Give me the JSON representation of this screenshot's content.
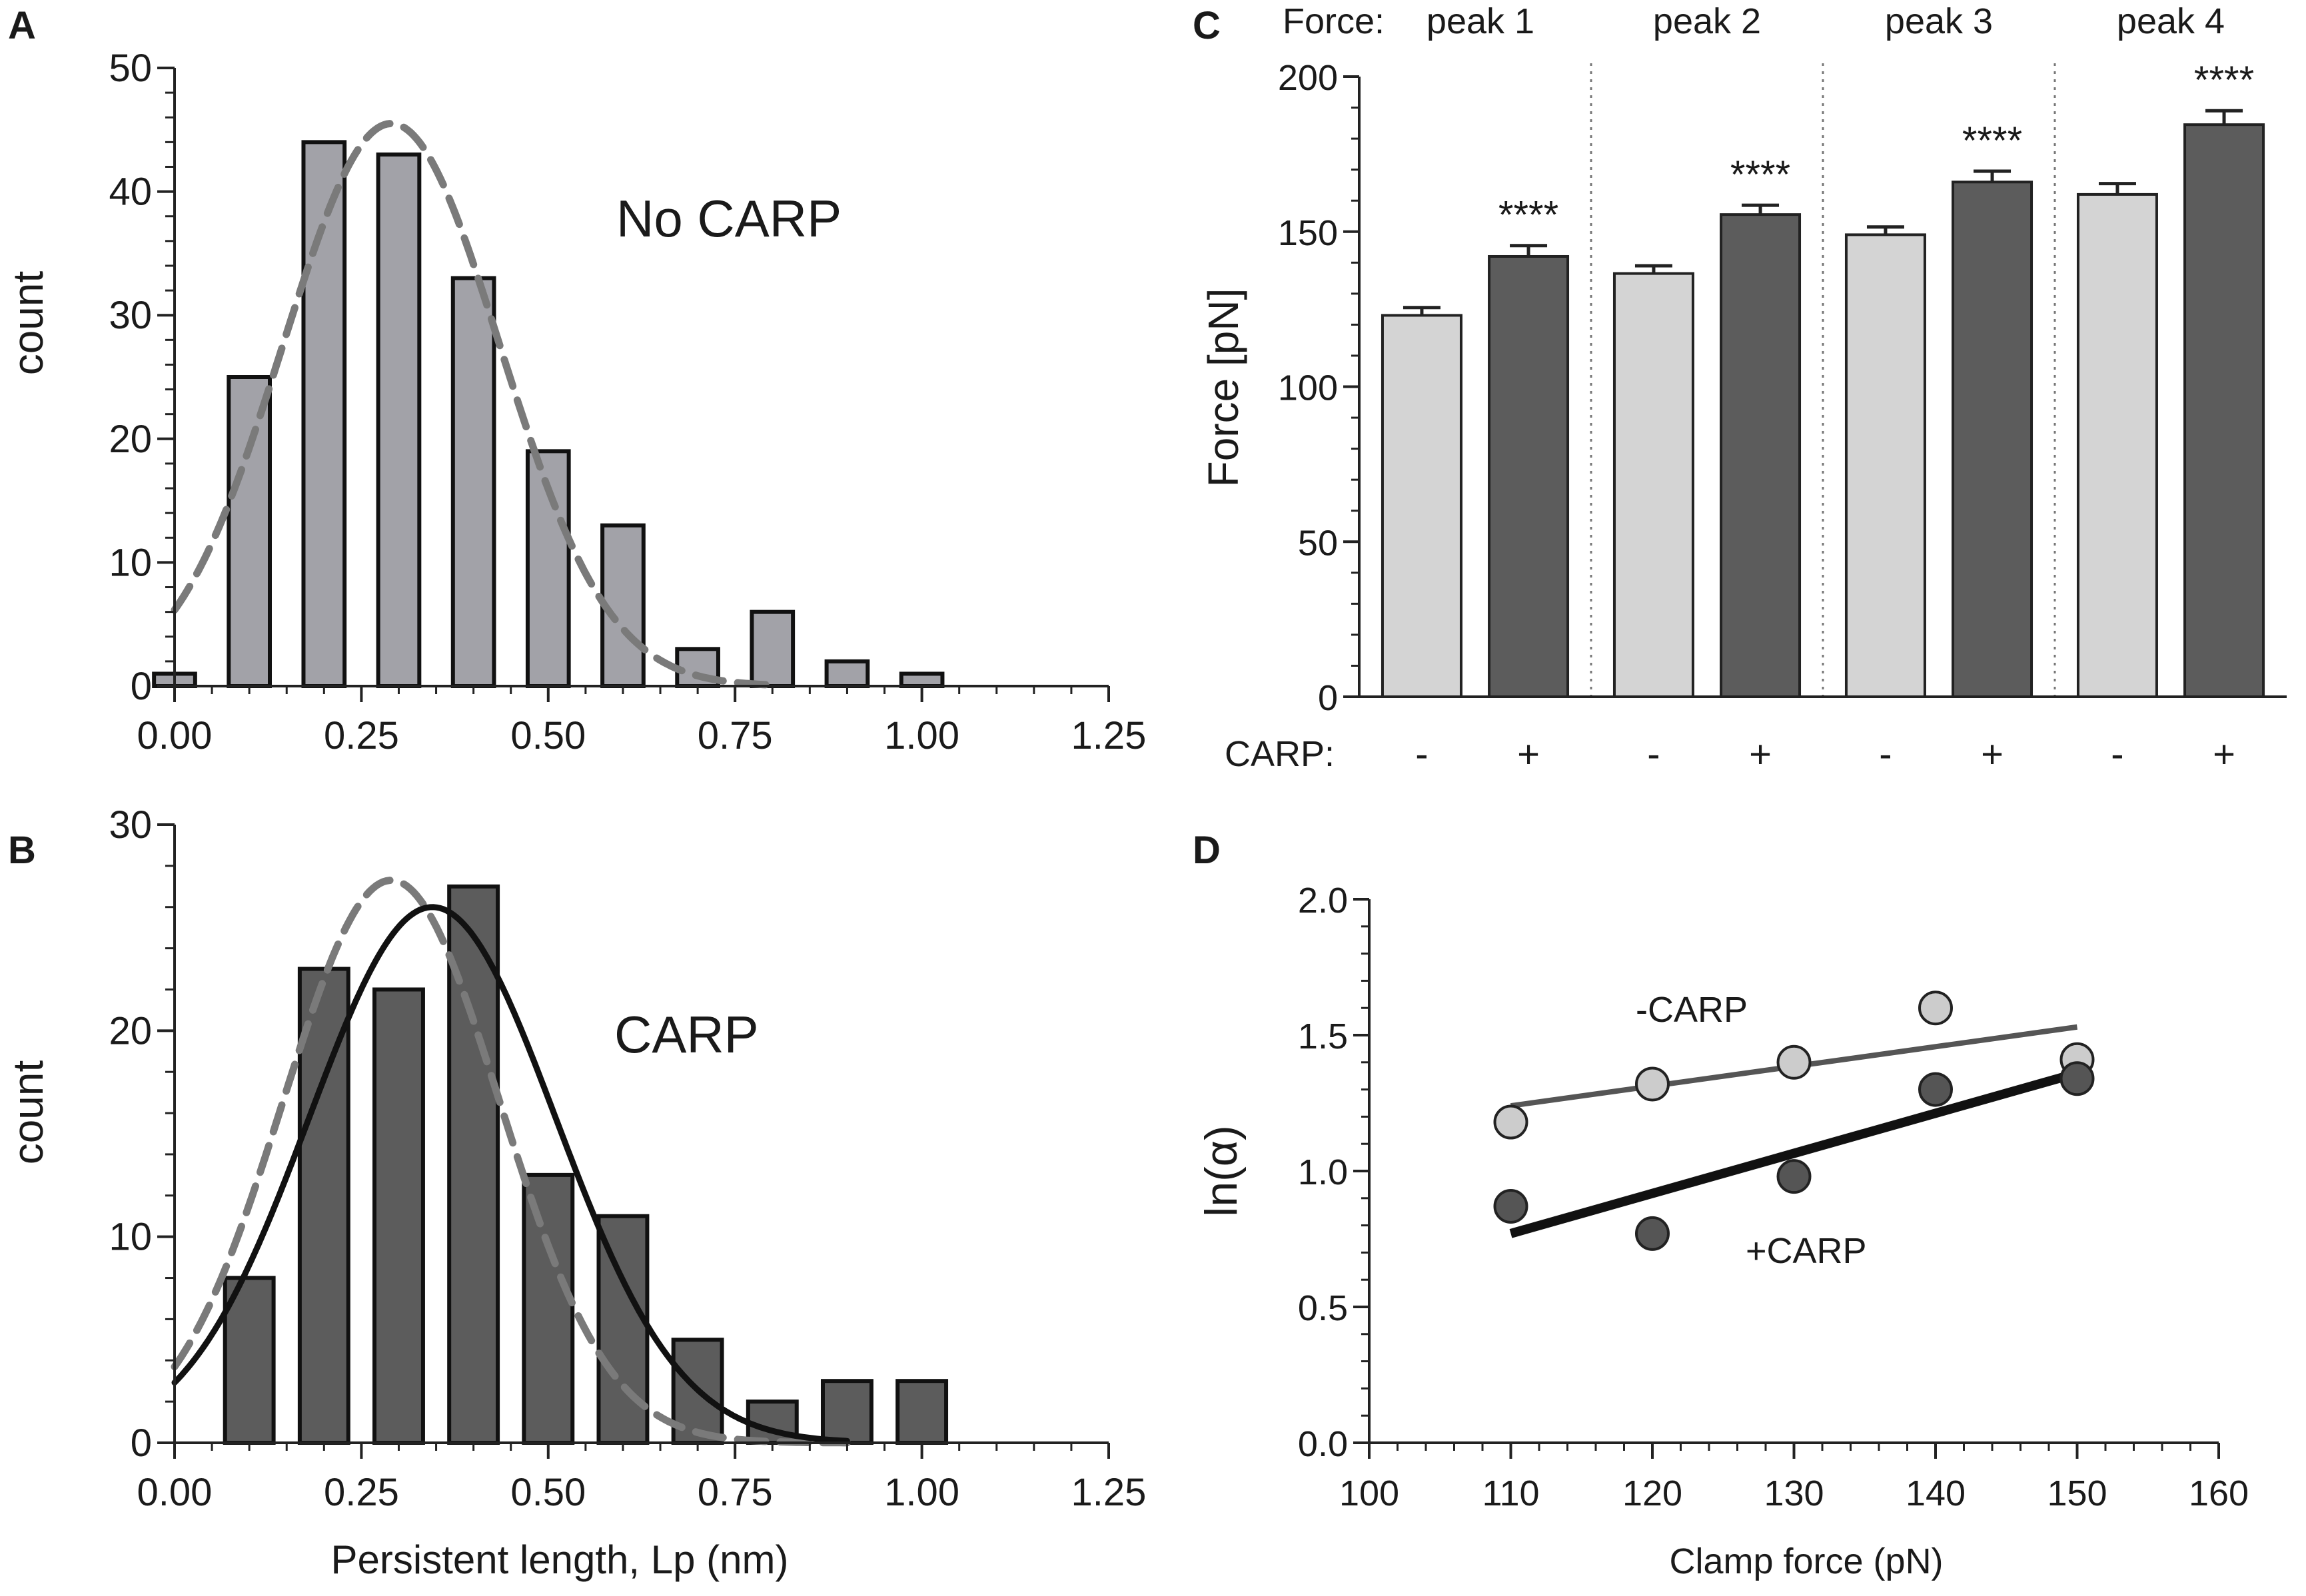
{
  "colors": {
    "bar_light": "#a2a2a8",
    "bar_dark": "#5c5c5c",
    "bar_pale": "#d4d4d4",
    "dashed_fit": "#7a7a7a",
    "solid_fit": "#111111",
    "axis": "#222222",
    "minus_carp_point": "#cccccc",
    "plus_carp_point": "#555555",
    "minus_carp_line": "#555555",
    "plus_carp_line": "#111111"
  },
  "chart_data": [
    {
      "panel": "A",
      "type": "bar",
      "title": "",
      "annotation": "No CARP",
      "xlabel": "",
      "ylabel": "count",
      "xlim": [
        0,
        1.25
      ],
      "ylim": [
        0,
        50
      ],
      "xticks": [
        "0.00",
        "0.25",
        "0.50",
        "0.75",
        "1.00",
        "1.25"
      ],
      "yticks": [
        "0",
        "10",
        "20",
        "30",
        "40",
        "50"
      ],
      "bin_width": 0.055,
      "x": [
        0.0,
        0.1,
        0.2,
        0.3,
        0.4,
        0.5,
        0.6,
        0.7,
        0.8,
        0.9,
        1.0
      ],
      "values": [
        1,
        25,
        44,
        43,
        33,
        19,
        13,
        3,
        6,
        2,
        1
      ],
      "fits": [
        {
          "name": "Gaussian fit (No CARP)",
          "style": "dashed",
          "amplitude": 45.5,
          "mean": 0.29,
          "sd": 0.145
        }
      ]
    },
    {
      "panel": "B",
      "type": "bar",
      "title": "",
      "annotation": "CARP",
      "xlabel": "Persistent length, Lp (nm)",
      "ylabel": "count",
      "xlim": [
        0,
        1.25
      ],
      "ylim": [
        0,
        30
      ],
      "xticks": [
        "0.00",
        "0.25",
        "0.50",
        "0.75",
        "1.00",
        "1.25"
      ],
      "yticks": [
        "0",
        "10",
        "20",
        "30"
      ],
      "bin_width": 0.065,
      "x": [
        0.1,
        0.2,
        0.3,
        0.4,
        0.5,
        0.6,
        0.7,
        0.8,
        0.9,
        1.0
      ],
      "values": [
        8,
        23,
        22,
        27,
        13,
        11,
        5,
        2,
        3,
        3
      ],
      "fits": [
        {
          "name": "Gaussian fit (No CARP)",
          "style": "dashed",
          "amplitude": 27.3,
          "mean": 0.29,
          "sd": 0.145
        },
        {
          "name": "Gaussian fit (CARP)",
          "style": "solid",
          "amplitude": 26.0,
          "mean": 0.345,
          "sd": 0.165
        }
      ]
    },
    {
      "panel": "C",
      "type": "bar",
      "title": "",
      "header_label": "Force:",
      "group_labels": [
        "peak 1",
        "peak  2",
        "peak 3",
        "peak 4"
      ],
      "condition_label": "CARP:",
      "conditions": [
        "-",
        "+"
      ],
      "ylabel": "Force [pN]",
      "ylim": [
        0,
        200
      ],
      "yticks": [
        "0",
        "50",
        "100",
        "150",
        "200"
      ],
      "series": [
        {
          "name": "- CARP",
          "values": [
            123,
            136.5,
            149,
            162
          ],
          "errors": [
            2.5,
            2.5,
            2.5,
            3.5
          ]
        },
        {
          "name": "+ CARP",
          "values": [
            142,
            155.5,
            166,
            184.5
          ],
          "errors": [
            3.5,
            3.0,
            3.5,
            4.5
          ]
        }
      ],
      "significance": [
        "****",
        "****",
        "****",
        "****"
      ]
    },
    {
      "panel": "D",
      "type": "scatter",
      "title": "",
      "xlabel": "Clamp force (pN)",
      "ylabel": "ln(α)",
      "xlim": [
        100,
        160
      ],
      "ylim": [
        0,
        2
      ],
      "xticks": [
        "100",
        "110",
        "120",
        "130",
        "140",
        "150",
        "160"
      ],
      "yticks": [
        "0.0",
        "0.5",
        "1.0",
        "1.5",
        "2.0"
      ],
      "series": [
        {
          "name": "-CARP",
          "x": [
            110,
            120,
            130,
            140,
            150
          ],
          "y": [
            1.18,
            1.32,
            1.4,
            1.6,
            1.41
          ],
          "fit": {
            "x": [
              110,
              150
            ],
            "y": [
              1.24,
              1.53
            ]
          }
        },
        {
          "name": "+CARP",
          "x": [
            110,
            120,
            130,
            140,
            150
          ],
          "y": [
            0.87,
            0.77,
            0.98,
            1.3,
            1.34
          ],
          "fit": {
            "x": [
              110,
              150
            ],
            "y": [
              0.77,
              1.36
            ]
          }
        }
      ]
    }
  ]
}
